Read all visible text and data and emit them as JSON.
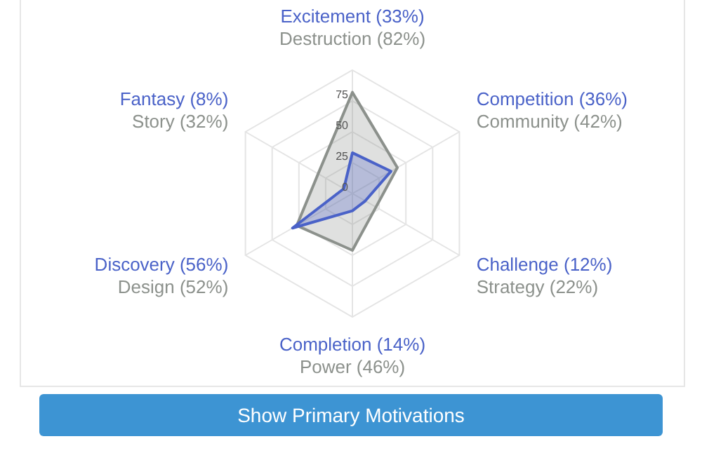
{
  "chart_data": {
    "type": "radar",
    "categories": [
      "Excitement (33%)\nDestruction (82%)",
      "Competition (36%)\nCommunity (42%)",
      "Challenge (12%)\nStrategy (22%)",
      "Completion (14%)\nPower (46%)",
      "Discovery (56%)\nDesign (52%)",
      "Fantasy (8%)\nStory (32%)"
    ],
    "series": [
      {
        "color": "#4a62c8",
        "values": [
          33,
          36,
          12,
          14,
          56,
          8
        ]
      },
      {
        "color": "#8c918c",
        "values": [
          82,
          42,
          22,
          46,
          52,
          32
        ]
      }
    ],
    "ylim": [
      0,
      100
    ],
    "yticks": [
      0,
      25,
      50,
      75
    ],
    "grid": true,
    "legend": false,
    "marker": "none",
    "annotations": [
      "Show Primary Motivations"
    ]
  }
}
